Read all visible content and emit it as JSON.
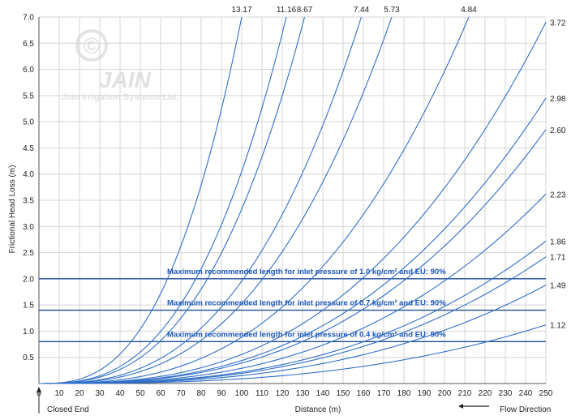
{
  "watermark": {
    "symbol": "©",
    "logo_text": "JAIN",
    "company_text": "Jain Irrigation Systems Ltd."
  },
  "footer": {
    "closed_end": "Closed End",
    "flow_direction": "Flow Direction"
  },
  "colors": {
    "curve": "#2f6fc8",
    "threshold_line": "#1f4e99",
    "annotation_text": "#1a55b8",
    "grid": "#d4d4d4"
  },
  "chart_data": {
    "type": "line",
    "xlabel": "Distance (m)",
    "ylabel": "Frictional Head Loss (m)",
    "xlim": [
      0,
      250
    ],
    "ylim": [
      0,
      7
    ],
    "xticks": [
      0,
      10,
      20,
      30,
      40,
      50,
      60,
      70,
      80,
      90,
      100,
      110,
      120,
      130,
      140,
      150,
      160,
      170,
      180,
      190,
      200,
      210,
      220,
      230,
      240,
      250
    ],
    "yticks": [
      0.5,
      1.0,
      1.5,
      2.0,
      2.5,
      3.0,
      3.5,
      4.0,
      4.5,
      5.0,
      5.5,
      6.0,
      6.5,
      7.0
    ],
    "ytick_labels": [
      "0.5",
      "1.0",
      "1.5",
      "2.0",
      "2.5",
      "3.0",
      "3.5",
      "4.0",
      "4.5",
      "5.0",
      "5.5",
      "6.0",
      "6.5",
      "7.0"
    ],
    "grid": true,
    "exponent": 2.75,
    "series": [
      {
        "name": "13.17",
        "end_x": 100,
        "end_y": 7.0,
        "label_position": "top"
      },
      {
        "name": "11.16",
        "end_x": 122,
        "end_y": 7.0,
        "label_position": "top"
      },
      {
        "name": "8.67",
        "end_x": 131,
        "end_y": 7.0,
        "label_position": "top"
      },
      {
        "name": "7.44",
        "end_x": 159,
        "end_y": 7.0,
        "label_position": "top"
      },
      {
        "name": "5.73",
        "end_x": 174,
        "end_y": 7.0,
        "label_position": "top"
      },
      {
        "name": "4.84",
        "end_x": 212,
        "end_y": 7.0,
        "label_position": "top"
      },
      {
        "name": "3.72",
        "end_x": 250,
        "end_y": 6.9,
        "label_position": "right"
      },
      {
        "name": "2.98",
        "end_x": 250,
        "end_y": 5.45,
        "label_position": "right"
      },
      {
        "name": "2.60",
        "end_x": 250,
        "end_y": 4.85,
        "label_position": "right"
      },
      {
        "name": "2.23",
        "end_x": 250,
        "end_y": 3.62,
        "label_position": "right"
      },
      {
        "name": "1.86",
        "end_x": 250,
        "end_y": 2.72,
        "label_position": "right"
      },
      {
        "name": "1.71",
        "end_x": 250,
        "end_y": 2.42,
        "label_position": "right"
      },
      {
        "name": "1.49",
        "end_x": 250,
        "end_y": 1.88,
        "label_position": "right"
      },
      {
        "name": "1.12",
        "end_x": 250,
        "end_y": 1.12,
        "label_position": "right"
      }
    ],
    "annotations": [
      {
        "y": 2.0,
        "text": "Maximum recommended length for inlet pressure of 1.0 kg/cm² and EU: 90%"
      },
      {
        "y": 1.4,
        "text": "Maximum recommended length for inlet pressure of 0.7 kg/cm² and EU: 90%"
      },
      {
        "y": 0.8,
        "text": "Maximum recommended length for inlet pressure of 0.4 kg/cm² and EU: 90%"
      }
    ]
  }
}
